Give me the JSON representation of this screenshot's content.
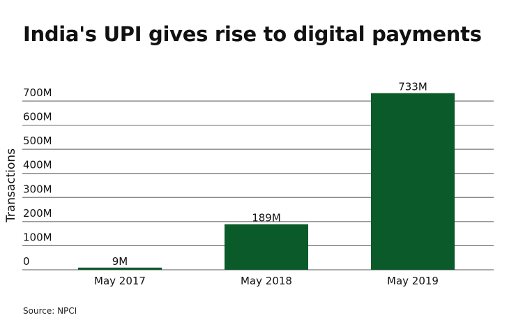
{
  "chart_data": {
    "type": "bar",
    "title": "India's UPI gives rise to digital payments",
    "categories": [
      "May 2017",
      "May 2018",
      "May 2019"
    ],
    "values": [
      9,
      189,
      733
    ],
    "data_labels": [
      "9M",
      "189M",
      "733M"
    ],
    "ylabel": "Transactions",
    "xlabel": "",
    "ylim": [
      0,
      700
    ],
    "yticks": [
      0,
      100,
      200,
      300,
      400,
      500,
      600,
      700
    ],
    "ytick_labels": [
      "0",
      "100M",
      "200M",
      "300M",
      "400M",
      "500M",
      "600M",
      "700M"
    ],
    "grid": true,
    "bar_color": "#0b5a2a",
    "source": "Source: NPCI"
  }
}
